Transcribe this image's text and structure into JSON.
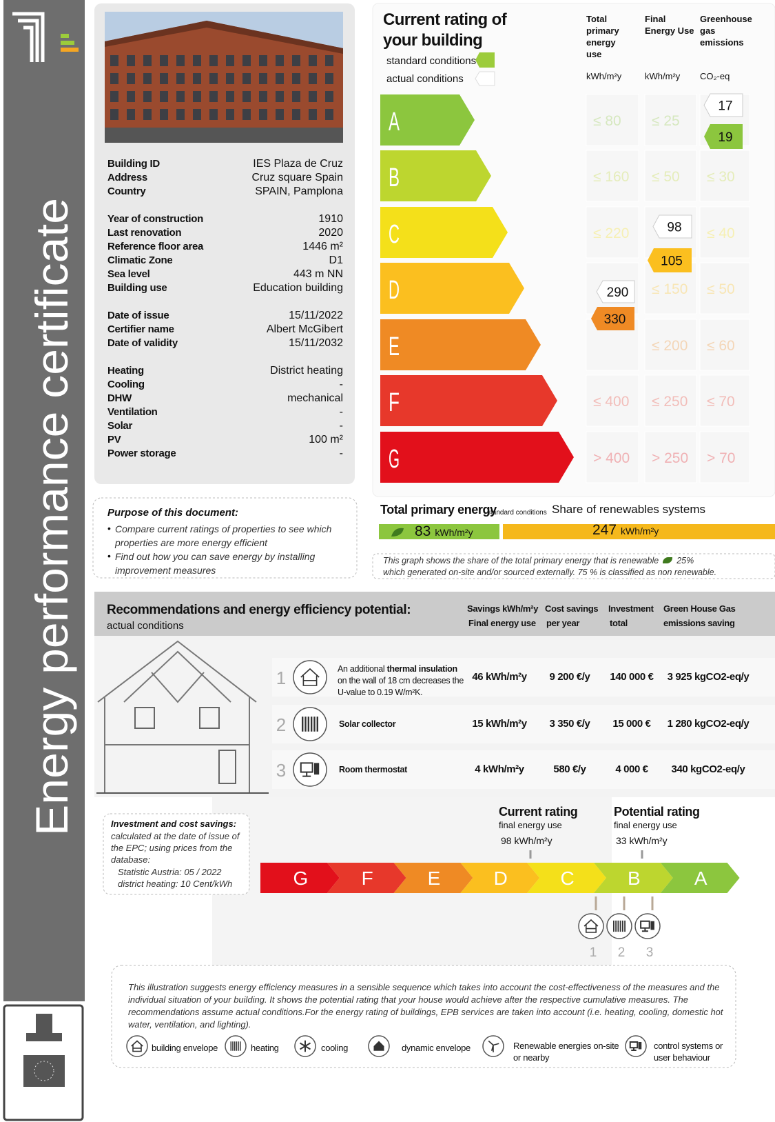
{
  "sidebar": {
    "title": "Energy performance certificate"
  },
  "building": {
    "groups": [
      [
        [
          "Building ID",
          "IES Plaza de Cruz"
        ],
        [
          "Address",
          "Cruz square Spain"
        ],
        [
          "Country",
          "SPAIN, Pamplona"
        ]
      ],
      [
        [
          "Year of construction",
          "1910"
        ],
        [
          "Last renovation",
          "2020"
        ],
        [
          "Reference floor area",
          "1446 m²"
        ],
        [
          "Climatic Zone",
          "D1"
        ],
        [
          "Sea level",
          "443 m NN"
        ],
        [
          "Building use",
          "Education building"
        ]
      ],
      [
        [
          "Date of issue",
          "15/11/2022"
        ],
        [
          "Certifier name",
          "Albert McGibert"
        ],
        [
          "Date of validity",
          "15/11/2032"
        ]
      ],
      [
        [
          "Heating",
          "District heating"
        ],
        [
          "Cooling",
          "-"
        ],
        [
          "DHW",
          "mechanical"
        ],
        [
          "Ventilation",
          "-"
        ],
        [
          "Solar",
          "-"
        ],
        [
          "PV",
          "100 m²"
        ],
        [
          "Power storage",
          "-"
        ]
      ]
    ]
  },
  "rating": {
    "title": "Current rating of your building",
    "legend": [
      "standard conditions",
      "actual conditions"
    ],
    "columns": [
      {
        "name": "Total primary energy use",
        "unit": "kWh/m²y",
        "actual": 290,
        "standard": 330
      },
      {
        "name": "Final Energy Use",
        "unit": "kWh/m²y",
        "actual": 98,
        "standard": 105
      },
      {
        "name": "Greenhouse gas emissions",
        "unit": "CO₂-eq",
        "actual": 17,
        "standard": 19
      }
    ],
    "classes": [
      "A",
      "B",
      "C",
      "D",
      "E",
      "F",
      "G"
    ],
    "colors": [
      "#8cc63e",
      "#bdd62f",
      "#f4e01a",
      "#fbbf1f",
      "#ef8a24",
      "#e7382b",
      "#e2101b"
    ],
    "thresholds": [
      [
        "≤ 80",
        "≤ 25",
        null
      ],
      [
        "≤ 160",
        "≤ 50",
        "≤ 30"
      ],
      [
        "≤ 220",
        null,
        "≤ 40"
      ],
      [
        null,
        "≤ 150",
        "≤ 50"
      ],
      [
        null,
        "≤ 200",
        "≤ 60"
      ],
      [
        "≤ 400",
        "≤ 250",
        "≤ 70"
      ],
      [
        "> 400",
        "> 250",
        "> 70"
      ]
    ]
  },
  "totals": {
    "label": "Total primary energy",
    "condition": "standard conditions",
    "renewables_label": "Share of renewables systems",
    "renewable": 83,
    "non_renewable": 247,
    "unit": "kWh/m²y",
    "note": [
      "This graph shows the share of the total primary energy that is renewable",
      "25%",
      "which generated on-site and/or sourced externally. 75 % is classified as non renewable."
    ]
  },
  "purpose": {
    "title": "Purpose of this document:",
    "items": [
      "Compare current ratings of properties to see which properties are more energy efficient",
      "Find out how you can save energy by installing improvement measures"
    ]
  },
  "recommendations": {
    "title": "Recommendations and energy efficiency potential:",
    "subtitle": "actual conditions",
    "columns": [
      [
        "Savings kWh/m²y",
        "Final energy use"
      ],
      [
        "Cost savings",
        "per year"
      ],
      [
        "Investment",
        "total"
      ],
      [
        "Green House Gas",
        "emissions saving"
      ]
    ],
    "rows": [
      {
        "number": 1,
        "description": [
          "An additional ",
          "thermal insulation",
          " on the wall of 18 cm decreases the U-value to 0.19 W/m²K."
        ],
        "savings": "46 kWh/m²y",
        "cost": "9 200 €/y",
        "investment": "140 000 €",
        "ghg": "3 925 kgCO2-eq/y"
      },
      {
        "number": 2,
        "description": [
          "Solar collector"
        ],
        "savings": "15 kWh/m²y",
        "cost": "3 350 €/y",
        "investment": "15 000 €",
        "ghg": "1 280 kgCO2-eq/y"
      },
      {
        "number": 3,
        "description": [
          "Room thermostat"
        ],
        "savings": "4 kWh/m²y",
        "cost": "580 €/y",
        "investment": "4 000 €",
        "ghg": "340 kgCO2-eq/y"
      }
    ]
  },
  "investment_note": {
    "title": "Investment and cost savings:",
    "text": "calculated at the date of issue of the EPC; using prices from the database:",
    "sources": [
      "Statistic Austria: 05 / 2022",
      "district heating: 10 Cent/kWh"
    ]
  },
  "scale": {
    "current": {
      "title": "Current rating",
      "subtitle": "final energy use",
      "value": "98 kWh/m²y"
    },
    "potential": {
      "title": "Potential rating",
      "subtitle": "final energy use",
      "value": "33 kWh/m²y"
    },
    "steps": [
      1,
      2,
      3
    ]
  },
  "footer": {
    "text": "This illustration suggests energy efficiency measures in a sensible sequence which takes into account the cost-effectiveness of the measures and the individual situation of your building. It shows the potential rating that your house would achieve after the respective cumulative measures. The recommendations assume actual conditions.For the energy rating of buildings, EPB services are taken into account (i.e. heating, cooling, domestic hot water, ventilation, and lighting).",
    "legend": [
      "building envelope",
      "heating",
      "cooling",
      "dynamic envelope",
      "Renewable energies on-site or nearby",
      "control systems or user behaviour"
    ]
  }
}
